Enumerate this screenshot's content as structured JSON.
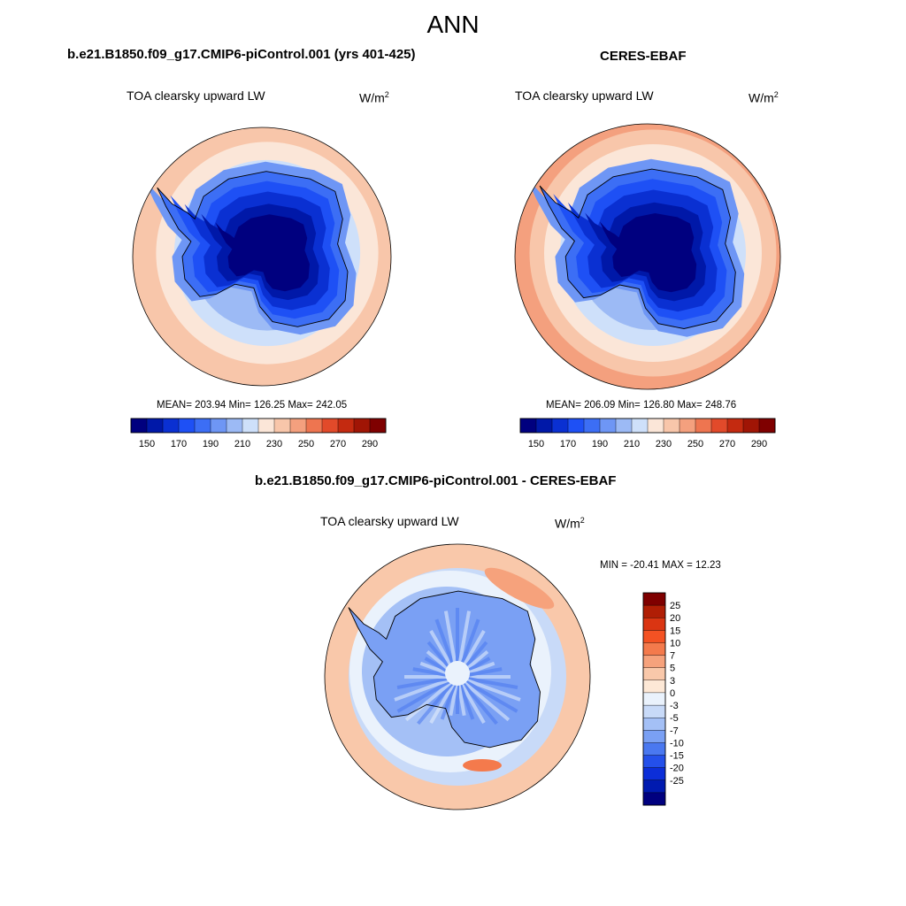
{
  "figure": {
    "title": "ANN"
  },
  "panels": {
    "model": {
      "title": "b.e21.B1850.f09_g17.CMIP6-piControl.001 (yrs 401-425)",
      "variable": "TOA clearsky upward LW",
      "units_base": "W/m",
      "units_sup": "2",
      "stats": "MEAN= 203.94  Min= 126.25  Max= 242.05"
    },
    "obs": {
      "title": "CERES-EBAF",
      "variable": "TOA clearsky upward LW",
      "units_base": "W/m",
      "units_sup": "2",
      "stats": "MEAN= 206.09  Min= 126.80  Max= 248.76"
    },
    "diff": {
      "title": "b.e21.B1850.f09_g17.CMIP6-piControl.001 - CERES-EBAF",
      "variable": "TOA clearsky upward LW",
      "units_base": "W/m",
      "units_sup": "2",
      "stats": "MIN = -20.41 MAX =  12.23"
    }
  },
  "chart_data": [
    {
      "type": "heatmap",
      "projection": "south-polar-stereographic",
      "variable": "TOA clearsky upward LW",
      "units": "W/m2",
      "mean": 203.94,
      "min": 126.25,
      "max": 242.05,
      "colorbar": {
        "orientation": "horizontal",
        "levels": [
          150,
          160,
          170,
          180,
          190,
          200,
          210,
          220,
          230,
          240,
          250,
          260,
          270,
          280,
          290
        ],
        "tick_labels": [
          "150",
          "170",
          "190",
          "210",
          "230",
          "250",
          "270",
          "290"
        ],
        "colors": [
          "#00007f",
          "#0018a8",
          "#0a30d2",
          "#1e50f5",
          "#3c6ef5",
          "#6e96f5",
          "#9cbaf5",
          "#cee0fa",
          "#fbe6d8",
          "#f8c6aa",
          "#f4a07e",
          "#ee7550",
          "#e24a2a",
          "#c42a10",
          "#a01505",
          "#7f0000"
        ]
      }
    },
    {
      "type": "heatmap",
      "projection": "south-polar-stereographic",
      "variable": "TOA clearsky upward LW",
      "units": "W/m2",
      "mean": 206.09,
      "min": 126.8,
      "max": 248.76,
      "colorbar": {
        "orientation": "horizontal",
        "levels": [
          150,
          160,
          170,
          180,
          190,
          200,
          210,
          220,
          230,
          240,
          250,
          260,
          270,
          280,
          290
        ],
        "tick_labels": [
          "150",
          "170",
          "190",
          "210",
          "230",
          "250",
          "270",
          "290"
        ],
        "colors": [
          "#00007f",
          "#0018a8",
          "#0a30d2",
          "#1e50f5",
          "#3c6ef5",
          "#6e96f5",
          "#9cbaf5",
          "#cee0fa",
          "#fbe6d8",
          "#f8c6aa",
          "#f4a07e",
          "#ee7550",
          "#e24a2a",
          "#c42a10",
          "#a01505",
          "#7f0000"
        ]
      }
    },
    {
      "type": "heatmap",
      "projection": "south-polar-stereographic",
      "variable": "TOA clearsky upward LW",
      "units": "W/m2",
      "min": -20.41,
      "max": 12.23,
      "colorbar": {
        "orientation": "vertical",
        "tick_labels_top_to_bottom": [
          "25",
          "20",
          "15",
          "10",
          "7",
          "5",
          "3",
          "0",
          "-3",
          "-5",
          "-7",
          "-10",
          "-15",
          "-20",
          "-25"
        ],
        "colors_top_to_bottom": [
          "#7f0000",
          "#b01e05",
          "#da3512",
          "#f45223",
          "#f47a4c",
          "#f6a27c",
          "#f9c8aa",
          "#fde8d6",
          "#eaf2fc",
          "#c8daf8",
          "#a4c0f6",
          "#7aa0f4",
          "#4a78f0",
          "#2450ea",
          "#0c2ed8",
          "#001ab0",
          "#00007f"
        ]
      }
    }
  ]
}
